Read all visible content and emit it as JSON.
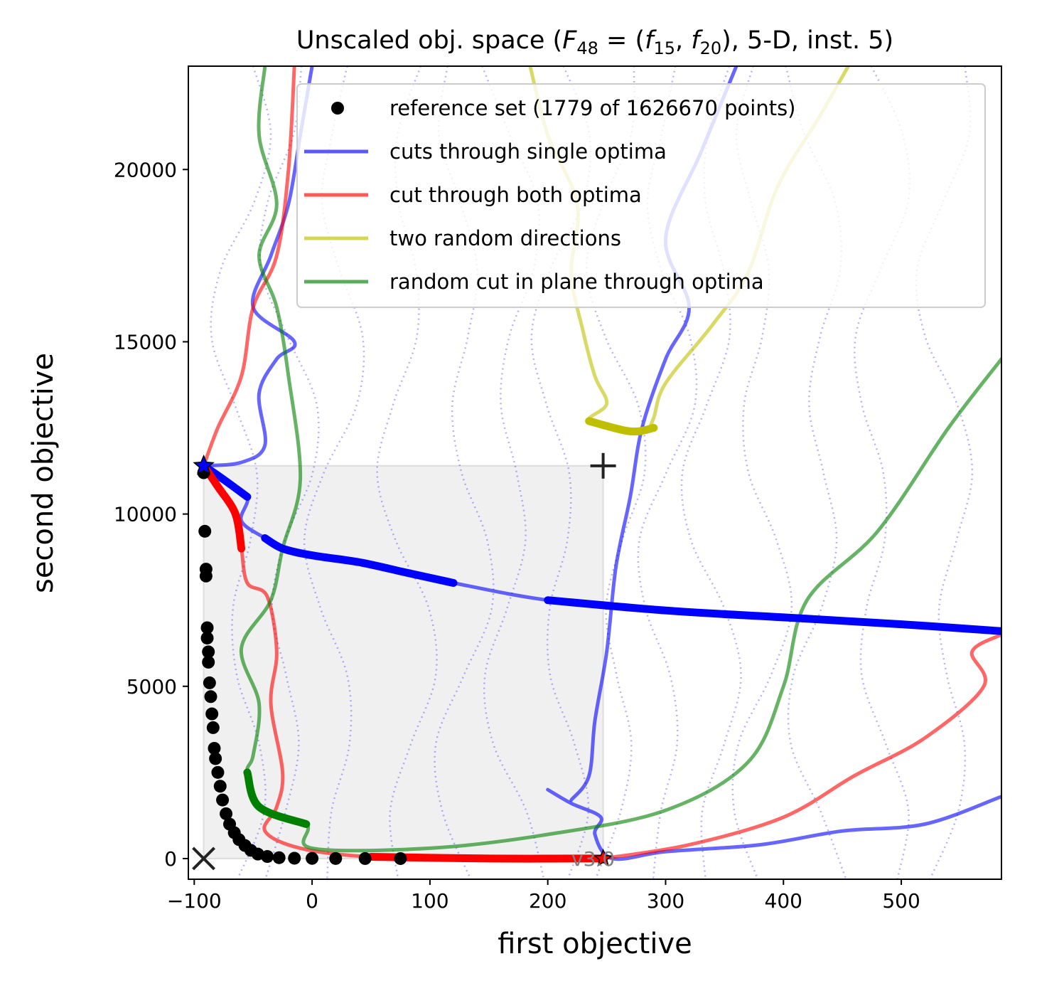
{
  "chart_data": {
    "type": "line",
    "title": "Unscaled obj. space (F48 = (f15, f20), 5-D, inst. 5)",
    "title_parts": {
      "prefix": "Unscaled obj. space (",
      "F": "F",
      "F_sub": "48",
      "eq": " = (",
      "f1": "f",
      "f1_sub": "15",
      "comma": ", ",
      "f2": "f",
      "f2_sub": "20",
      "suffix": "), 5-D, inst. 5)"
    },
    "xlabel": "first objective",
    "ylabel": "second objective",
    "xlim": [
      -105,
      585
    ],
    "ylim": [
      -600,
      23000
    ],
    "xticks": [
      -100,
      0,
      100,
      200,
      300,
      400,
      500
    ],
    "xtick_labels": [
      "−100",
      "0",
      "100",
      "200",
      "300",
      "400",
      "500"
    ],
    "yticks": [
      0,
      5000,
      10000,
      15000,
      20000
    ],
    "ytick_labels": [
      "0",
      "5000",
      "10000",
      "15000",
      "20000"
    ],
    "grid": false,
    "legend_position": "upper right",
    "legend": [
      {
        "label": "reference set (1779 of 1626670 points)",
        "marker": "dot",
        "color": "#000000"
      },
      {
        "label": "cuts through single optima",
        "marker": "line",
        "color": "#0000ff"
      },
      {
        "label": "cut through both optima",
        "marker": "line",
        "color": "#ff0000"
      },
      {
        "label": "two random directions",
        "marker": "line",
        "color": "#bfbf00"
      },
      {
        "label": "random cut in plane through optima",
        "marker": "line",
        "color": "#008000"
      }
    ],
    "colors": {
      "reference": "#000000",
      "single": "#0000ff",
      "both": "#ff0000",
      "random": "#bfbf00",
      "plane": "#008000",
      "dominated_region": "#f0f0f0"
    },
    "ideal_point": {
      "x": -92,
      "y": 0,
      "marker": "x"
    },
    "nadir_point": {
      "x": 247,
      "y": 11400,
      "marker": "+"
    },
    "optimum_f1": {
      "x": 247,
      "y": 0,
      "marker": "star",
      "color": "#ff0000"
    },
    "optimum_f2": {
      "x": -92,
      "y": 11400,
      "marker": "star",
      "color": "#0000ff"
    },
    "dominated_region": {
      "x": [
        -92,
        247
      ],
      "y": [
        0,
        11400
      ]
    },
    "version_label": "v3.0",
    "reference_set": [
      [
        -92,
        11200
      ],
      [
        -91,
        9500
      ],
      [
        -90,
        8400
      ],
      [
        -90,
        8200
      ],
      [
        -89,
        6700
      ],
      [
        -89,
        6400
      ],
      [
        -88,
        6000
      ],
      [
        -88,
        5700
      ],
      [
        -87,
        5100
      ],
      [
        -86,
        4700
      ],
      [
        -85,
        4200
      ],
      [
        -84,
        3800
      ],
      [
        -83,
        3200
      ],
      [
        -82,
        2900
      ],
      [
        -80,
        2500
      ],
      [
        -78,
        2100
      ],
      [
        -76,
        1700
      ],
      [
        -73,
        1300
      ],
      [
        -70,
        1000
      ],
      [
        -66,
        750
      ],
      [
        -62,
        550
      ],
      [
        -57,
        380
      ],
      [
        -52,
        240
      ],
      [
        -46,
        130
      ],
      [
        -38,
        60
      ],
      [
        -28,
        25
      ],
      [
        -15,
        10
      ],
      [
        0,
        5
      ],
      [
        20,
        2
      ],
      [
        45,
        1
      ],
      [
        75,
        0
      ]
    ],
    "series": [
      {
        "name": "cuts through single optima",
        "color": "#0000ff",
        "points": [
          [
            -92,
            11400
          ],
          [
            -75,
            11000
          ],
          [
            -55,
            10500
          ],
          [
            -60,
            9800
          ],
          [
            -40,
            9300
          ],
          [
            -25,
            9000
          ],
          [
            0,
            8800
          ],
          [
            40,
            8600
          ],
          [
            80,
            8300
          ],
          [
            120,
            8000
          ],
          [
            200,
            7500
          ],
          [
            300,
            7200
          ],
          [
            400,
            7000
          ],
          [
            500,
            6800
          ],
          [
            585,
            6600
          ]
        ]
      },
      {
        "name": "cuts through single optima",
        "color": "#0000ff",
        "points": [
          [
            -92,
            11400
          ],
          [
            -60,
            11500
          ],
          [
            -40,
            12000
          ],
          [
            -45,
            13500
          ],
          [
            -30,
            14500
          ],
          [
            -15,
            15000
          ],
          [
            -50,
            16000
          ],
          [
            -35,
            17500
          ],
          [
            -20,
            19000
          ],
          [
            -10,
            21000
          ],
          [
            0,
            23000
          ]
        ]
      },
      {
        "name": "cuts through single optima",
        "color": "#0000ff",
        "points": [
          [
            200,
            2000
          ],
          [
            220,
            1600
          ],
          [
            245,
            1200
          ],
          [
            240,
            700
          ],
          [
            255,
            0
          ],
          [
            300,
            200
          ],
          [
            380,
            400
          ],
          [
            450,
            800
          ],
          [
            520,
            1000
          ],
          [
            585,
            1800
          ]
        ]
      },
      {
        "name": "cuts through single optima",
        "color": "#0000ff",
        "points": [
          [
            220,
            1700
          ],
          [
            235,
            2400
          ],
          [
            240,
            4000
          ],
          [
            250,
            6000
          ],
          [
            258,
            8500
          ],
          [
            270,
            10500
          ],
          [
            280,
            12500
          ],
          [
            300,
            14500
          ],
          [
            320,
            16000
          ],
          [
            300,
            18000
          ],
          [
            330,
            20500
          ],
          [
            360,
            23000
          ]
        ]
      },
      {
        "name": "cut through both optima",
        "color": "#ff0000",
        "points": [
          [
            -92,
            11400
          ],
          [
            -80,
            10800
          ],
          [
            -65,
            10000
          ],
          [
            -60,
            9000
          ],
          [
            -55,
            8000
          ],
          [
            -38,
            7600
          ],
          [
            -30,
            6000
          ],
          [
            -35,
            4500
          ],
          [
            -25,
            2500
          ],
          [
            -30,
            1500
          ],
          [
            -40,
            800
          ],
          [
            -10,
            300
          ],
          [
            50,
            50
          ],
          [
            150,
            0
          ],
          [
            247,
            0
          ]
        ]
      },
      {
        "name": "cut through both optima",
        "color": "#ff0000",
        "points": [
          [
            -92,
            11400
          ],
          [
            -80,
            12500
          ],
          [
            -60,
            14000
          ],
          [
            -50,
            16000
          ],
          [
            -30,
            17500
          ],
          [
            -20,
            20000
          ],
          [
            -15,
            23000
          ]
        ]
      },
      {
        "name": "cut through both optima",
        "color": "#ff0000",
        "points": [
          [
            247,
            0
          ],
          [
            320,
            400
          ],
          [
            400,
            1200
          ],
          [
            460,
            2400
          ],
          [
            520,
            3500
          ],
          [
            570,
            5000
          ],
          [
            560,
            6000
          ],
          [
            585,
            6500
          ]
        ]
      },
      {
        "name": "two random directions",
        "color": "#bfbf00",
        "points": [
          [
            185,
            23000
          ],
          [
            200,
            21000
          ],
          [
            225,
            19000
          ],
          [
            220,
            17000
          ],
          [
            230,
            15300
          ],
          [
            240,
            14000
          ],
          [
            250,
            13200
          ],
          [
            235,
            12700
          ],
          [
            270,
            12400
          ],
          [
            290,
            12500
          ]
        ]
      },
      {
        "name": "two random directions",
        "color": "#bfbf00",
        "points": [
          [
            455,
            23000
          ],
          [
            430,
            21500
          ],
          [
            395,
            19500
          ],
          [
            370,
            17000
          ],
          [
            340,
            15500
          ],
          [
            300,
            13800
          ],
          [
            290,
            12800
          ],
          [
            285,
            12400
          ]
        ]
      },
      {
        "name": "random cut in plane through optima",
        "color": "#008000",
        "points": [
          [
            -40,
            23000
          ],
          [
            -45,
            21000
          ],
          [
            -30,
            19000
          ],
          [
            -45,
            17500
          ],
          [
            -30,
            16000
          ],
          [
            -20,
            14000
          ],
          [
            -10,
            11000
          ],
          [
            -25,
            9000
          ],
          [
            -35,
            7500
          ],
          [
            -60,
            6100
          ],
          [
            -45,
            4500
          ],
          [
            -50,
            3000
          ],
          [
            -55,
            2500
          ],
          [
            -45,
            1500
          ],
          [
            -5,
            1000
          ],
          [
            0,
            300
          ],
          [
            100,
            300
          ],
          [
            200,
            700
          ],
          [
            300,
            1400
          ],
          [
            370,
            2800
          ],
          [
            400,
            5000
          ],
          [
            420,
            7500
          ],
          [
            480,
            9500
          ],
          [
            540,
            12500
          ],
          [
            585,
            14500
          ]
        ]
      }
    ]
  }
}
